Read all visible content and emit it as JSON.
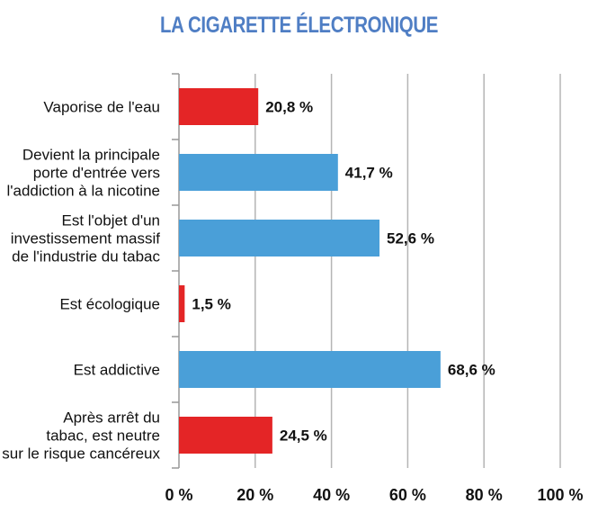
{
  "chart_data": {
    "type": "bar",
    "orientation": "horizontal",
    "title": "LA CIGARETTE ÉLECTRONIQUE",
    "categories": [
      [
        "Vaporise de l'eau"
      ],
      [
        "Devient la principale",
        "porte d'entrée vers",
        "l'addiction à la nicotine"
      ],
      [
        "Est l'objet d'un",
        "investissement massif",
        "de l'industrie du tabac"
      ],
      [
        "Est écologique"
      ],
      [
        "Est addictive"
      ],
      [
        "Après arrêt du",
        "tabac, est neutre",
        "sur le risque cancéreux"
      ]
    ],
    "values": [
      20.8,
      41.7,
      52.6,
      1.5,
      68.6,
      24.5
    ],
    "value_labels": [
      "20,8 %",
      "41,7 %",
      "52,6 %",
      "1,5 %",
      "68,6 %",
      "24,5 %"
    ],
    "bar_colors": [
      "#e42526",
      "#4a9fd8",
      "#4a9fd8",
      "#e42526",
      "#4a9fd8",
      "#e42526"
    ],
    "xlim": [
      0,
      100
    ],
    "xticks": [
      0,
      20,
      40,
      60,
      80,
      100
    ],
    "xtick_labels": [
      "0 %",
      "20 %",
      "40 %",
      "60 %",
      "80 %",
      "100 %"
    ],
    "grid": true,
    "xlabel": "",
    "ylabel": ""
  },
  "colors": {
    "title": "#4f7ec4",
    "red": "#e42526",
    "blue": "#4a9fd8",
    "grid": "#b5b5b5"
  }
}
